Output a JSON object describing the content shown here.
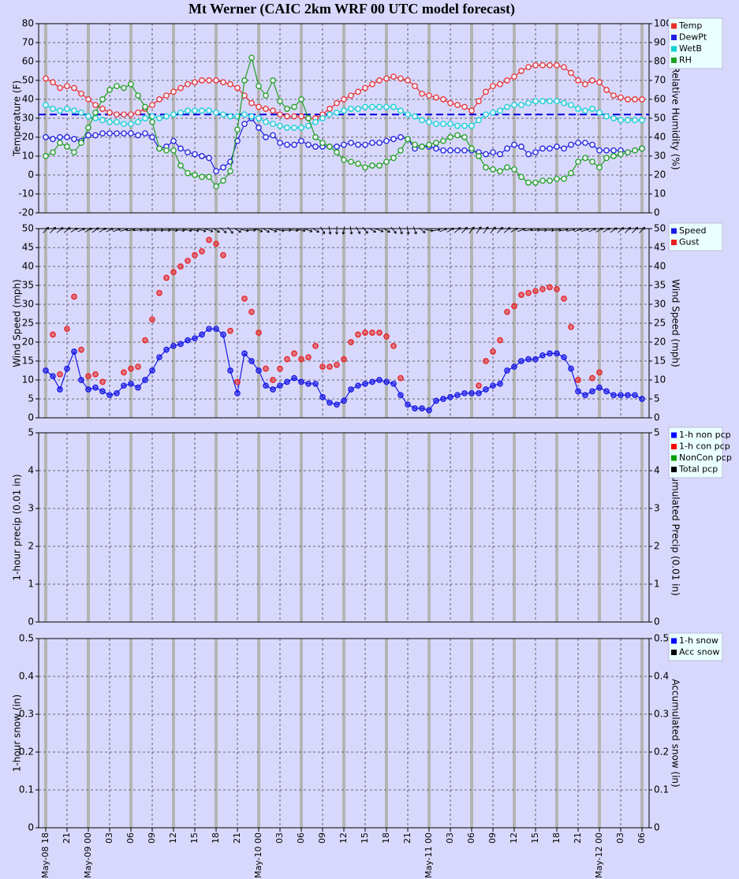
{
  "chart_data": [
    {
      "type": "line",
      "title": "Mt Werner (CAIC 2km WRF 00 UTC model forecast)",
      "ylabel": "Temperature (F)",
      "y2label": "Relative Humidity (%)",
      "ylim": [
        -20,
        80
      ],
      "yticks": [
        -20,
        -10,
        0,
        10,
        20,
        30,
        40,
        50,
        60,
        70,
        80
      ],
      "y2lim": [
        0,
        100
      ],
      "y2ticks": [
        0,
        10,
        20,
        30,
        40,
        50,
        60,
        70,
        80,
        90,
        100
      ],
      "grid": true,
      "legend": "right",
      "reference_line": {
        "value": 32,
        "color": "#0000dd"
      },
      "x": [
        0,
        1,
        2,
        3,
        4,
        5,
        6,
        7,
        8,
        9,
        10,
        11,
        12,
        13,
        14,
        15,
        16,
        17,
        18,
        19,
        20,
        21,
        22,
        23,
        24,
        25,
        26,
        27,
        28,
        29,
        30,
        31,
        32,
        33,
        34,
        35,
        36,
        37,
        38,
        39,
        40,
        41,
        42,
        43,
        44,
        45,
        46,
        47,
        48,
        49,
        50,
        51,
        52,
        53,
        54,
        55,
        56,
        57,
        58,
        59,
        60,
        61,
        62,
        63,
        64,
        65,
        66,
        67,
        68,
        69,
        70,
        71,
        72,
        73,
        74,
        75,
        76,
        77,
        78,
        79,
        80,
        81,
        82,
        83,
        84
      ],
      "series": [
        {
          "name": "Temp",
          "color": "#e83030",
          "line": true,
          "values": [
            51,
            49,
            46,
            47,
            46,
            43,
            40,
            37,
            35,
            33,
            32,
            32,
            32,
            33,
            35,
            37,
            40,
            42,
            44,
            46,
            48,
            49,
            50,
            50,
            50,
            49,
            48,
            46,
            42,
            38,
            36,
            35,
            34,
            32,
            31,
            31,
            31,
            30,
            30,
            32,
            35,
            38,
            40,
            42,
            44,
            46,
            48,
            50,
            51,
            52,
            51,
            50,
            47,
            43,
            42,
            41,
            40,
            38,
            37,
            36,
            34,
            39,
            44,
            47,
            48,
            50,
            52,
            55,
            57,
            58,
            58,
            58,
            58,
            57,
            54,
            50,
            48,
            50,
            49,
            45,
            42,
            41,
            40,
            40,
            40
          ]
        },
        {
          "name": "DewPt",
          "color": "#2020e0",
          "line": true,
          "values": [
            20,
            19,
            20,
            20,
            19,
            18,
            21,
            21,
            22,
            22,
            22,
            22,
            22,
            21,
            22,
            20,
            14,
            15,
            18,
            14,
            12,
            11,
            10,
            9,
            2,
            4,
            7,
            18,
            27,
            30,
            25,
            20,
            21,
            17,
            16,
            16,
            18,
            16,
            15,
            15,
            15,
            15,
            16,
            17,
            16,
            16,
            17,
            17,
            18,
            19,
            20,
            19,
            14,
            15,
            15,
            14,
            13,
            13,
            13,
            13,
            13,
            12,
            11,
            12,
            11,
            14,
            16,
            15,
            11,
            12,
            14,
            14,
            15,
            14,
            16,
            17,
            17,
            16,
            13,
            13,
            13,
            13,
            12,
            13,
            14
          ]
        },
        {
          "name": "WetB",
          "color": "#10d0d0",
          "line": true,
          "values": [
            37,
            35,
            34,
            35,
            34,
            33,
            31,
            30,
            29,
            28,
            28,
            27,
            27,
            28,
            30,
            31,
            30,
            31,
            32,
            33,
            34,
            34,
            34,
            34,
            33,
            32,
            31,
            31,
            32,
            31,
            30,
            28,
            27,
            26,
            25,
            25,
            25,
            26,
            28,
            30,
            32,
            33,
            34,
            35,
            35,
            36,
            36,
            36,
            36,
            36,
            34,
            32,
            31,
            29,
            28,
            27,
            27,
            27,
            26,
            26,
            26,
            29,
            32,
            33,
            34,
            36,
            37,
            37,
            38,
            39,
            39,
            39,
            39,
            38,
            37,
            35,
            34,
            35,
            33,
            31,
            30,
            29,
            29,
            29,
            29
          ]
        },
        {
          "name": "RH",
          "color": "#20a020",
          "line": true,
          "axis": "y2",
          "values": [
            30,
            32,
            37,
            35,
            32,
            37,
            45,
            53,
            60,
            65,
            67,
            66,
            68,
            62,
            56,
            48,
            34,
            33,
            33,
            25,
            21,
            20,
            19,
            19,
            14,
            17,
            22,
            44,
            70,
            82,
            67,
            62,
            70,
            59,
            55,
            56,
            60,
            50,
            40,
            37,
            35,
            32,
            28,
            27,
            26,
            24,
            25,
            25,
            27,
            29,
            33,
            39,
            36,
            35,
            36,
            37,
            38,
            40,
            41,
            40,
            34,
            30,
            24,
            23,
            22,
            24,
            23,
            19,
            16,
            16,
            17,
            17,
            18,
            18,
            21,
            27,
            29,
            27,
            24,
            29,
            30,
            31,
            32,
            33,
            34
          ]
        }
      ]
    },
    {
      "type": "line",
      "ylabel": "Wind Speed (mph)",
      "y2label": "Wind Speed (mph)",
      "ylim": [
        0,
        50
      ],
      "yticks": [
        0,
        5,
        10,
        15,
        20,
        25,
        30,
        35,
        40,
        45,
        50
      ],
      "y2lim": [
        0,
        50
      ],
      "y2ticks": [
        0,
        5,
        10,
        15,
        20,
        25,
        30,
        35,
        40,
        45,
        50
      ],
      "grid": true,
      "legend": "right",
      "x": [
        0,
        1,
        2,
        3,
        4,
        5,
        6,
        7,
        8,
        9,
        10,
        11,
        12,
        13,
        14,
        15,
        16,
        17,
        18,
        19,
        20,
        21,
        22,
        23,
        24,
        25,
        26,
        27,
        28,
        29,
        30,
        31,
        32,
        33,
        34,
        35,
        36,
        37,
        38,
        39,
        40,
        41,
        42,
        43,
        44,
        45,
        46,
        47,
        48,
        49,
        50,
        51,
        52,
        53,
        54,
        55,
        56,
        57,
        58,
        59,
        60,
        61,
        62,
        63,
        64,
        65,
        66,
        67,
        68,
        69,
        70,
        71,
        72,
        73,
        74,
        75,
        76,
        77,
        78,
        79,
        80,
        81,
        82,
        83,
        84
      ],
      "wind_direction": [
        225,
        225,
        230,
        230,
        240,
        245,
        240,
        235,
        240,
        245,
        250,
        255,
        260,
        265,
        270,
        270,
        270,
        270,
        275,
        275,
        280,
        280,
        285,
        290,
        300,
        310,
        320,
        300,
        280,
        270,
        290,
        300,
        290,
        280,
        270,
        275,
        280,
        290,
        300,
        330,
        350,
        360,
        10,
        350,
        330,
        320,
        300,
        290,
        300,
        320,
        340,
        350,
        340,
        310,
        280,
        260,
        245,
        240,
        230,
        225,
        220,
        215,
        215,
        220,
        225,
        230,
        240,
        250,
        260,
        265,
        270,
        270,
        265,
        260,
        255,
        250,
        250,
        245,
        240,
        240,
        235,
        230,
        225,
        225,
        225
      ],
      "series": [
        {
          "name": "Speed",
          "color": "#1818e8",
          "line": true,
          "values": [
            12.5,
            11,
            7.5,
            13,
            17.5,
            10,
            7.5,
            8,
            7,
            6,
            6.5,
            8.5,
            9,
            8,
            10,
            12.5,
            16,
            18,
            19,
            19.5,
            20.5,
            21,
            22,
            23.5,
            23.5,
            22,
            12.5,
            6.5,
            17,
            15,
            12.5,
            8.5,
            7.5,
            8.5,
            9.5,
            10.5,
            9.5,
            9,
            9,
            5.5,
            4,
            3.5,
            4.5,
            7.5,
            8.5,
            9,
            9.5,
            10,
            9.5,
            9,
            6,
            3.5,
            2.5,
            2.5,
            2,
            4.5,
            5,
            5.5,
            6,
            6.5,
            6.5,
            6.5,
            7.5,
            8.5,
            9,
            12.5,
            13.5,
            15,
            15.5,
            15.5,
            16.5,
            17,
            17,
            16,
            13,
            7,
            6,
            7,
            8,
            7,
            6,
            6,
            6,
            6,
            5
          ]
        },
        {
          "name": "Gust",
          "color": "#e82020",
          "line": false,
          "values": [
            null,
            22,
            11.5,
            23.5,
            32,
            18,
            11,
            11.5,
            9.5,
            null,
            null,
            12,
            13,
            13.5,
            20.5,
            26,
            33,
            37,
            38.5,
            40,
            41.5,
            43,
            44,
            47,
            46,
            43,
            23,
            9.5,
            31.5,
            28,
            22.5,
            13,
            10,
            13,
            15.5,
            17,
            15.5,
            16,
            19,
            13.5,
            13.5,
            14,
            15.5,
            20,
            22,
            22.5,
            22.5,
            22.5,
            21.5,
            19,
            10.5,
            null,
            null,
            null,
            null,
            null,
            null,
            null,
            null,
            null,
            null,
            8.5,
            15,
            17.5,
            20.5,
            28,
            29.5,
            32.5,
            33,
            33.5,
            34,
            34.5,
            34,
            31.5,
            24,
            10,
            null,
            10.5,
            12,
            null,
            null,
            null,
            null,
            null,
            null
          ]
        }
      ]
    },
    {
      "type": "bar",
      "ylabel": "1-hour precip (0.01 in)",
      "y2label": "Accumulated Precip (0.01 in)",
      "ylim": [
        0,
        5
      ],
      "yticks": [
        0,
        1,
        2,
        3,
        4,
        5
      ],
      "y2lim": [
        0,
        5
      ],
      "y2ticks": [
        0,
        1,
        2,
        3,
        4,
        5
      ],
      "grid": true,
      "legend": "right",
      "series": [
        {
          "name": "1-h non pcp",
          "color": "#0000ff"
        },
        {
          "name": "1-h con pcp",
          "color": "#ff0000"
        },
        {
          "name": "NonCon pcp",
          "color": "#00a000"
        },
        {
          "name": "Total pcp",
          "color": "#000000"
        }
      ]
    },
    {
      "type": "bar",
      "ylabel": "1-hour snow (in)",
      "y2label": "Accumulated snow (in)",
      "ylim": [
        0,
        0.5
      ],
      "yticks": [
        0,
        0.1,
        0.2,
        0.3,
        0.4,
        0.5
      ],
      "y2lim": [
        0,
        0.5
      ],
      "y2ticks": [
        0,
        0.1,
        0.2,
        0.3,
        0.4,
        0.5
      ],
      "grid": true,
      "legend": "right",
      "xlim": [
        -1,
        85
      ],
      "xticks": [
        {
          "value": 0,
          "label": "May-08 18"
        },
        {
          "value": 3,
          "label": "21"
        },
        {
          "value": 6,
          "label": "May-09 00"
        },
        {
          "value": 9,
          "label": "03"
        },
        {
          "value": 12,
          "label": "06"
        },
        {
          "value": 15,
          "label": "09"
        },
        {
          "value": 18,
          "label": "12"
        },
        {
          "value": 21,
          "label": "15"
        },
        {
          "value": 24,
          "label": "18"
        },
        {
          "value": 27,
          "label": "21"
        },
        {
          "value": 30,
          "label": "May-10 00"
        },
        {
          "value": 33,
          "label": "03"
        },
        {
          "value": 36,
          "label": "06"
        },
        {
          "value": 39,
          "label": "09"
        },
        {
          "value": 42,
          "label": "12"
        },
        {
          "value": 45,
          "label": "15"
        },
        {
          "value": 48,
          "label": "18"
        },
        {
          "value": 51,
          "label": "21"
        },
        {
          "value": 54,
          "label": "May-11 00"
        },
        {
          "value": 57,
          "label": "03"
        },
        {
          "value": 60,
          "label": "06"
        },
        {
          "value": 63,
          "label": "09"
        },
        {
          "value": 66,
          "label": "12"
        },
        {
          "value": 69,
          "label": "15"
        },
        {
          "value": 72,
          "label": "18"
        },
        {
          "value": 75,
          "label": "21"
        },
        {
          "value": 78,
          "label": "May-12 00"
        },
        {
          "value": 81,
          "label": "03"
        },
        {
          "value": 84,
          "label": "06"
        }
      ],
      "series": [
        {
          "name": "1-h snow",
          "color": "#0000ff"
        },
        {
          "name": "Acc snow",
          "color": "#000000"
        }
      ]
    }
  ]
}
